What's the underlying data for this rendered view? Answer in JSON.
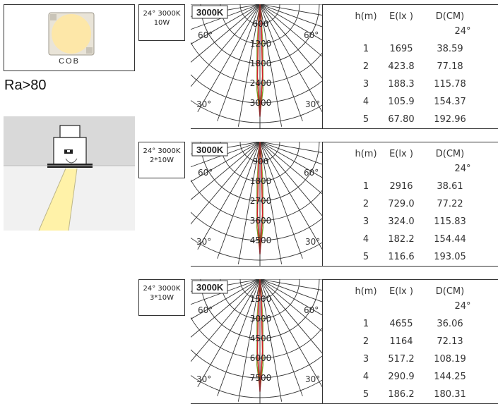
{
  "chip": {
    "label": "COB"
  },
  "ra_text": "Ra>80",
  "colors": {
    "red_curve": "#d21f2a",
    "green_curve": "#7a9a25",
    "olive_curve": "#b6b44a",
    "grid": "#333333",
    "beam": "#fff2a8",
    "ceiling": "#d9d9d9"
  },
  "rows": [
    {
      "spec": [
        "24° 3000K",
        "10W"
      ],
      "cct": "3000K",
      "ring_labels": [
        "600",
        "1200",
        "1800",
        "2400",
        "3000"
      ],
      "angle_labels": {
        "left60": "60°",
        "right60": "60°",
        "left30": "30°",
        "right30": "30°"
      },
      "headers": [
        "h(m)",
        "E(lx )",
        "D(CM)"
      ],
      "angle": "24°",
      "data": [
        [
          "1",
          "1695",
          "38.59"
        ],
        [
          "2",
          "423.8",
          "77.18"
        ],
        [
          "3",
          "188.3",
          "115.78"
        ],
        [
          "4",
          "105.9",
          "154.37"
        ],
        [
          "5",
          "67.80",
          "192.96"
        ]
      ]
    },
    {
      "spec": [
        "24° 3000K",
        "2*10W"
      ],
      "cct": "3000K",
      "ring_labels": [
        "900",
        "1800",
        "2700",
        "3600",
        "4500"
      ],
      "angle_labels": {
        "left60": "60°",
        "right60": "60°",
        "left30": "30°",
        "right30": "30°"
      },
      "headers": [
        "h(m)",
        "E(lx )",
        "D(CM)"
      ],
      "angle": "24°",
      "data": [
        [
          "1",
          "2916",
          "38.61"
        ],
        [
          "2",
          "729.0",
          "77.22"
        ],
        [
          "3",
          "324.0",
          "115.83"
        ],
        [
          "4",
          "182.2",
          "154.44"
        ],
        [
          "5",
          "116.6",
          "193.05"
        ]
      ]
    },
    {
      "spec": [
        "24° 3000K",
        "3*10W"
      ],
      "cct": "3000K",
      "ring_labels": [
        "1500",
        "3000",
        "4500",
        "6000",
        "7500"
      ],
      "angle_labels": {
        "left60": "60°",
        "right60": "60°",
        "left30": "30°",
        "right30": "30°"
      },
      "headers": [
        "h(m)",
        "E(lx )",
        "D(CM)"
      ],
      "angle": "24°",
      "data": [
        [
          "1",
          "4655",
          "36.06"
        ],
        [
          "2",
          "1164",
          "72.13"
        ],
        [
          "3",
          "517.2",
          "108.19"
        ],
        [
          "4",
          "290.9",
          "144.25"
        ],
        [
          "5",
          "186.2",
          "180.31"
        ]
      ]
    }
  ]
}
